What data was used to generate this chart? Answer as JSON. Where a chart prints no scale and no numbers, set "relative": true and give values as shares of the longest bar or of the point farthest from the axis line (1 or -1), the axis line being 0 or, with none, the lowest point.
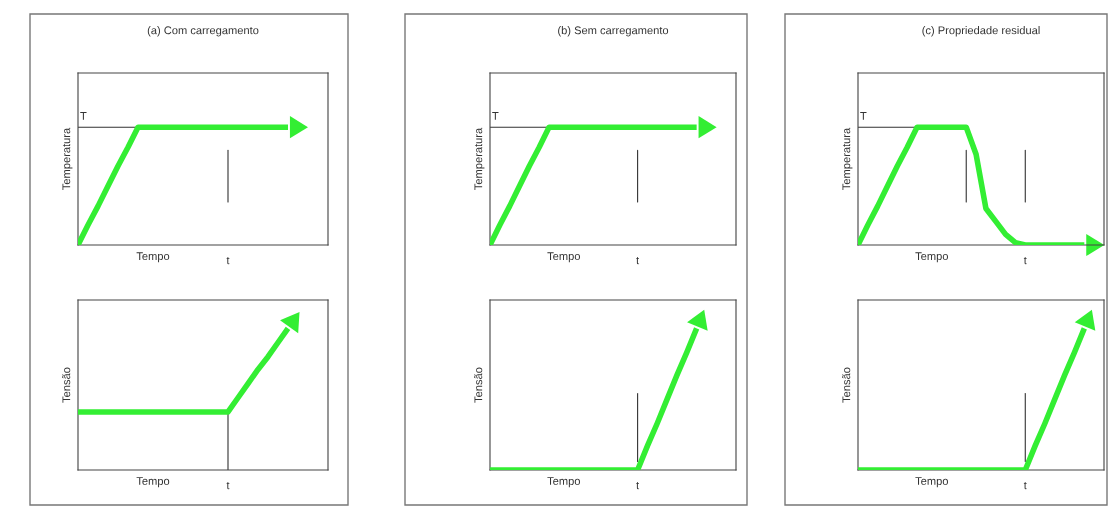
{
  "chart_data": [
    {
      "type": "line",
      "title": "(a) Com carregamento",
      "xlabel": "Tempo",
      "ylabel": "Temperatura",
      "relative": true,
      "annotations": [
        "T",
        "t"
      ],
      "categories": [
        null,
        null,
        null,
        null,
        null,
        null,
        null,
        null,
        null,
        null,
        null,
        null,
        null,
        null,
        null,
        null,
        null,
        null,
        null,
        null,
        null,
        null
      ],
      "series": [
        {
          "color": "#33ee33",
          "values": [
            0,
            0.17,
            0.33,
            0.5,
            0.67,
            0.83,
            1,
            1,
            1,
            1,
            1,
            1,
            1,
            1,
            1,
            1,
            1,
            1,
            1,
            1,
            1,
            1
          ]
        }
      ],
      "marker": "none",
      "line_style": "solid"
    },
    {
      "type": "line",
      "xlabel": "Tempo",
      "ylabel": "Tensão",
      "relative": true,
      "annotations": [
        "t"
      ],
      "categories": [
        null,
        null,
        null,
        null,
        null,
        null,
        null,
        null,
        null,
        null,
        null,
        null,
        null,
        null,
        null,
        null,
        null,
        null,
        null,
        null,
        null,
        null
      ],
      "series": [
        {
          "color": "#33ee33",
          "values": [
            0.41,
            0.41,
            0.41,
            0.41,
            0.41,
            0.41,
            0.41,
            0.41,
            0.41,
            0.41,
            0.41,
            0.41,
            0.41,
            0.41,
            0.41,
            0.41,
            0.51,
            0.61,
            0.71,
            0.8,
            0.9,
            1
          ]
        }
      ],
      "marker": "none",
      "line_style": "solid"
    },
    {
      "type": "line",
      "title": "(b) Sem carregamento",
      "xlabel": "Tempo",
      "ylabel": "Temperatura",
      "relative": true,
      "annotations": [
        "T",
        "t"
      ],
      "categories": [
        null,
        null,
        null,
        null,
        null,
        null,
        null,
        null,
        null,
        null,
        null,
        null,
        null,
        null,
        null,
        null,
        null,
        null,
        null,
        null,
        null,
        null
      ],
      "series": [
        {
          "color": "#33ee33",
          "values": [
            0,
            0.17,
            0.33,
            0.5,
            0.67,
            0.83,
            1,
            1,
            1,
            1,
            1,
            1,
            1,
            1,
            1,
            1,
            1,
            1,
            1,
            1,
            1,
            1
          ]
        }
      ],
      "marker": "none",
      "line_style": "solid"
    },
    {
      "type": "line",
      "xlabel": "Tempo",
      "ylabel": "Tensão",
      "relative": true,
      "annotations": [
        "t"
      ],
      "categories": [
        null,
        null,
        null,
        null,
        null,
        null,
        null,
        null,
        null,
        null,
        null,
        null,
        null,
        null,
        null,
        null,
        null,
        null,
        null,
        null,
        null,
        null
      ],
      "series": [
        {
          "color": "#33ee33",
          "values": [
            0,
            0,
            0,
            0,
            0,
            0,
            0,
            0,
            0,
            0,
            0,
            0,
            0,
            0,
            0,
            0,
            0.17,
            0.33,
            0.5,
            0.67,
            0.83,
            1
          ]
        }
      ],
      "marker": "none",
      "line_style": "solid"
    },
    {
      "type": "line",
      "title": "(c) Propriedade residual",
      "xlabel": "Tempo",
      "ylabel": "Temperatura",
      "relative": true,
      "annotations": [
        "T",
        "t"
      ],
      "categories": [
        null,
        null,
        null,
        null,
        null,
        null,
        null,
        null,
        null,
        null,
        null,
        null,
        null,
        null,
        null,
        null,
        null,
        null,
        null,
        null,
        null,
        null,
        null,
        null
      ],
      "series": [
        {
          "color": "#33ee33",
          "values": [
            0,
            0.17,
            0.33,
            0.5,
            0.67,
            0.83,
            1,
            1,
            1,
            1,
            1,
            1,
            0.77,
            0.31,
            0.2,
            0.09,
            0.02,
            0,
            0,
            0,
            0,
            0,
            0,
            0
          ]
        }
      ],
      "marker": "none",
      "line_style": "solid"
    },
    {
      "type": "line",
      "xlabel": "Tempo",
      "ylabel": "Tensão",
      "relative": true,
      "annotations": [
        "t"
      ],
      "categories": [
        null,
        null,
        null,
        null,
        null,
        null,
        null,
        null,
        null,
        null,
        null,
        null,
        null,
        null,
        null,
        null,
        null,
        null,
        null,
        null,
        null,
        null,
        null,
        null
      ],
      "series": [
        {
          "color": "#33ee33",
          "values": [
            0,
            0,
            0,
            0,
            0,
            0,
            0,
            0,
            0,
            0,
            0,
            0,
            0,
            0,
            0,
            0,
            0,
            0,
            0.17,
            0.33,
            0.5,
            0.67,
            0.83,
            1
          ]
        }
      ],
      "marker": "none",
      "line_style": "solid"
    }
  ]
}
